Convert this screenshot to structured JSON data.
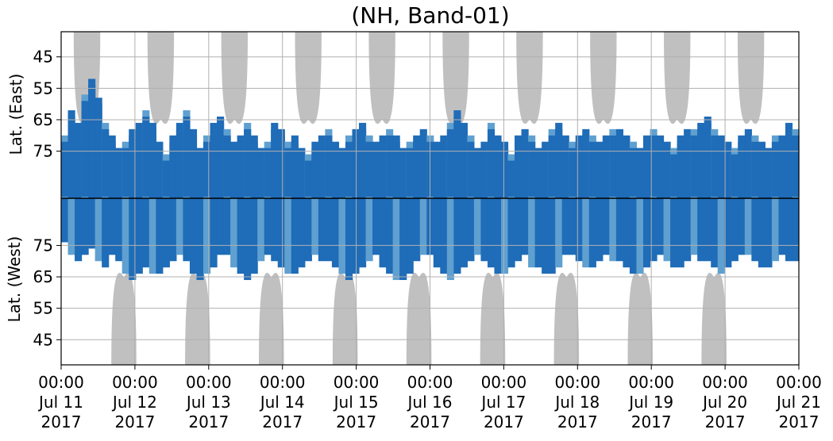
{
  "chart_data": {
    "type": "heatmap",
    "title": "(NH, Band-01)",
    "ylabel_top": "Lat. (East)",
    "ylabel_bottom": "Lat. (West)",
    "y_ticks_top": [
      "45",
      "55",
      "65",
      "75"
    ],
    "y_ticks_bottom": [
      "75",
      "65",
      "55",
      "45"
    ],
    "x_ticks": [
      {
        "time": "00:00",
        "day": "Jul 11",
        "year": "2017"
      },
      {
        "time": "00:00",
        "day": "Jul 12",
        "year": "2017"
      },
      {
        "time": "00:00",
        "day": "Jul 13",
        "year": "2017"
      },
      {
        "time": "00:00",
        "day": "Jul 14",
        "year": "2017"
      },
      {
        "time": "00:00",
        "day": "Jul 15",
        "year": "2017"
      },
      {
        "time": "00:00",
        "day": "Jul 16",
        "year": "2017"
      },
      {
        "time": "00:00",
        "day": "Jul 17",
        "year": "2017"
      },
      {
        "time": "00:00",
        "day": "Jul 18",
        "year": "2017"
      },
      {
        "time": "00:00",
        "day": "Jul 19",
        "year": "2017"
      },
      {
        "time": "00:00",
        "day": "Jul 20",
        "year": "2017"
      },
      {
        "time": "00:00",
        "day": "Jul 21",
        "year": "2017"
      }
    ],
    "x_range": [
      "2017-07-11 00:00",
      "2017-07-21 00:00"
    ],
    "lat_range": [
      37,
      90
    ],
    "grid": true,
    "colors": {
      "dark": "#1f6cb8",
      "light": "#5fa0d0",
      "night": "#c0c0c0",
      "center_line": "#000000",
      "grid": "#b0b0b0"
    },
    "east_envelope": {
      "lower_lat": [
        70,
        62,
        66,
        57,
        52,
        58,
        66,
        70,
        74,
        72,
        68,
        66,
        62,
        66,
        72,
        76,
        70,
        66,
        62,
        68,
        74,
        70,
        66,
        64,
        68,
        72,
        70,
        66,
        70,
        74,
        72,
        66,
        68,
        72,
        70,
        74,
        76,
        72,
        70,
        68,
        72,
        74,
        70,
        68,
        66,
        70,
        72,
        70,
        68,
        70,
        74,
        72,
        70,
        68,
        70,
        72,
        70,
        66,
        62,
        66,
        70,
        74,
        72,
        66,
        70,
        72,
        76,
        70,
        68,
        70,
        74,
        72,
        68,
        66,
        70,
        72,
        70,
        68,
        70,
        72,
        70,
        68,
        68,
        70,
        72,
        74,
        70,
        68,
        70,
        72,
        74,
        70,
        68,
        68,
        66,
        64,
        68,
        70,
        72,
        74,
        70,
        68,
        70,
        72,
        74,
        70,
        70,
        66,
        68
      ]
    },
    "west_envelope": {
      "lower_lat": [
        76,
        72,
        70,
        72,
        74,
        70,
        68,
        72,
        70,
        66,
        64,
        66,
        68,
        66,
        66,
        68,
        70,
        72,
        70,
        66,
        64,
        66,
        68,
        72,
        72,
        68,
        66,
        64,
        66,
        70,
        72,
        70,
        68,
        66,
        66,
        68,
        70,
        72,
        70,
        70,
        68,
        66,
        64,
        66,
        68,
        70,
        72,
        68,
        66,
        64,
        64,
        66,
        70,
        72,
        72,
        68,
        66,
        64,
        66,
        68,
        70,
        72,
        70,
        68,
        66,
        66,
        68,
        70,
        72,
        68,
        68,
        66,
        66,
        68,
        72,
        72,
        70,
        68,
        68,
        70,
        72,
        70,
        70,
        68,
        66,
        66,
        68,
        70,
        72,
        70,
        68,
        68,
        70,
        72,
        70,
        70,
        68,
        66,
        68,
        70,
        72,
        72,
        70,
        68,
        68,
        70,
        72,
        70,
        70
      ]
    }
  }
}
